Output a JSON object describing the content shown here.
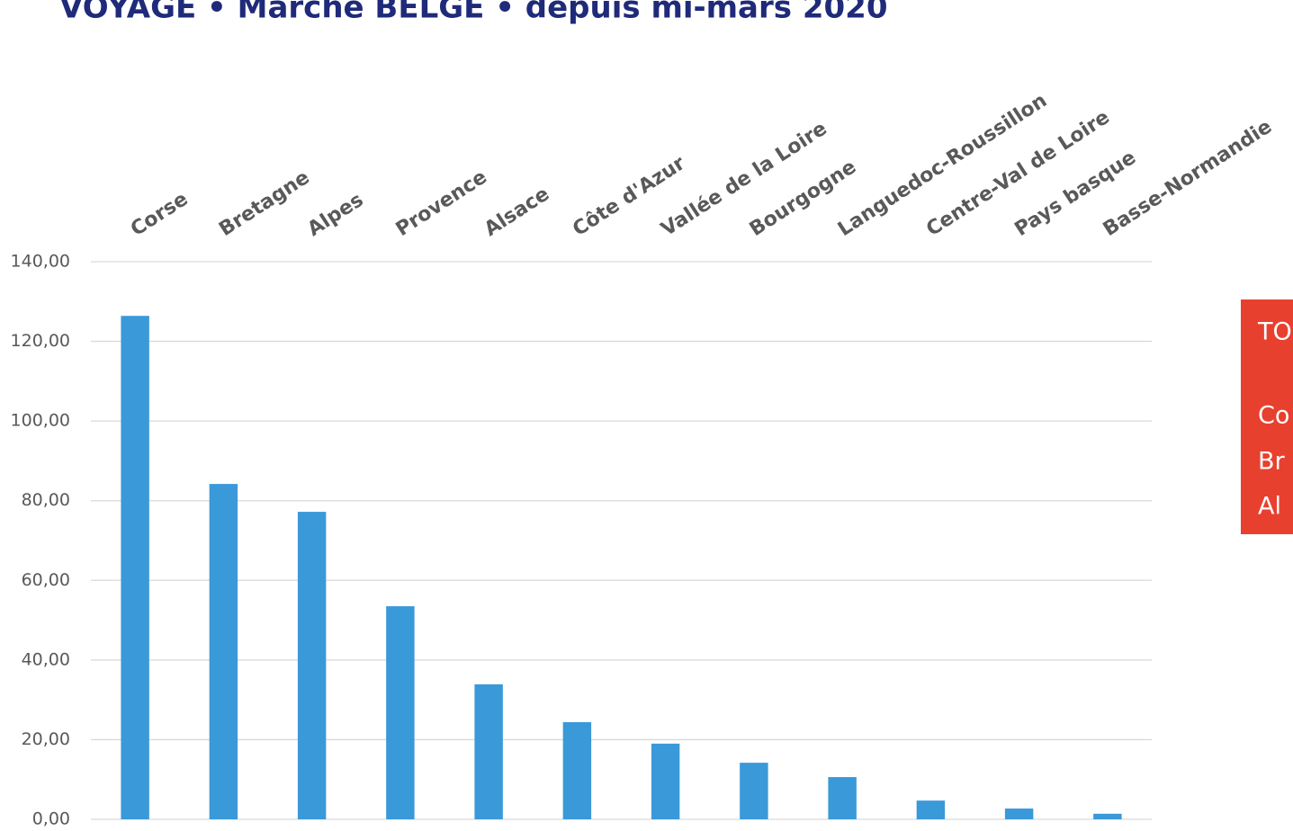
{
  "chart_data": {
    "type": "bar",
    "title": "VOYAGE • Marché BELGE • depuis mi-mars 2020",
    "categories": [
      "Corse",
      "Bretagne",
      "Alpes",
      "Provence",
      "Alsace",
      "Côte d'Azur",
      "Vallée de la Loire",
      "Bourgogne",
      "Languedoc-Roussillon",
      "Centre-Val de Loire",
      "Pays basque",
      "Basse-Normandie"
    ],
    "values": [
      126.4,
      84.2,
      77.2,
      53.5,
      33.9,
      24.4,
      19.0,
      14.2,
      10.6,
      4.7,
      2.7,
      1.4
    ],
    "color": "#3a99d8",
    "ylim": [
      0,
      140
    ],
    "yticks": [
      {
        "value": 0,
        "label": "0,00"
      },
      {
        "value": 20,
        "label": "20,00"
      },
      {
        "value": 40,
        "label": "40,00"
      },
      {
        "value": 60,
        "label": "60,00"
      },
      {
        "value": 80,
        "label": "80,00"
      },
      {
        "value": 100,
        "label": "100,00"
      },
      {
        "value": 120,
        "label": "120,00"
      },
      {
        "value": 140,
        "label": "140,00"
      }
    ],
    "grid": true
  },
  "side_box": {
    "lines": [
      "TO",
      "Co",
      "Br",
      "Al"
    ]
  }
}
